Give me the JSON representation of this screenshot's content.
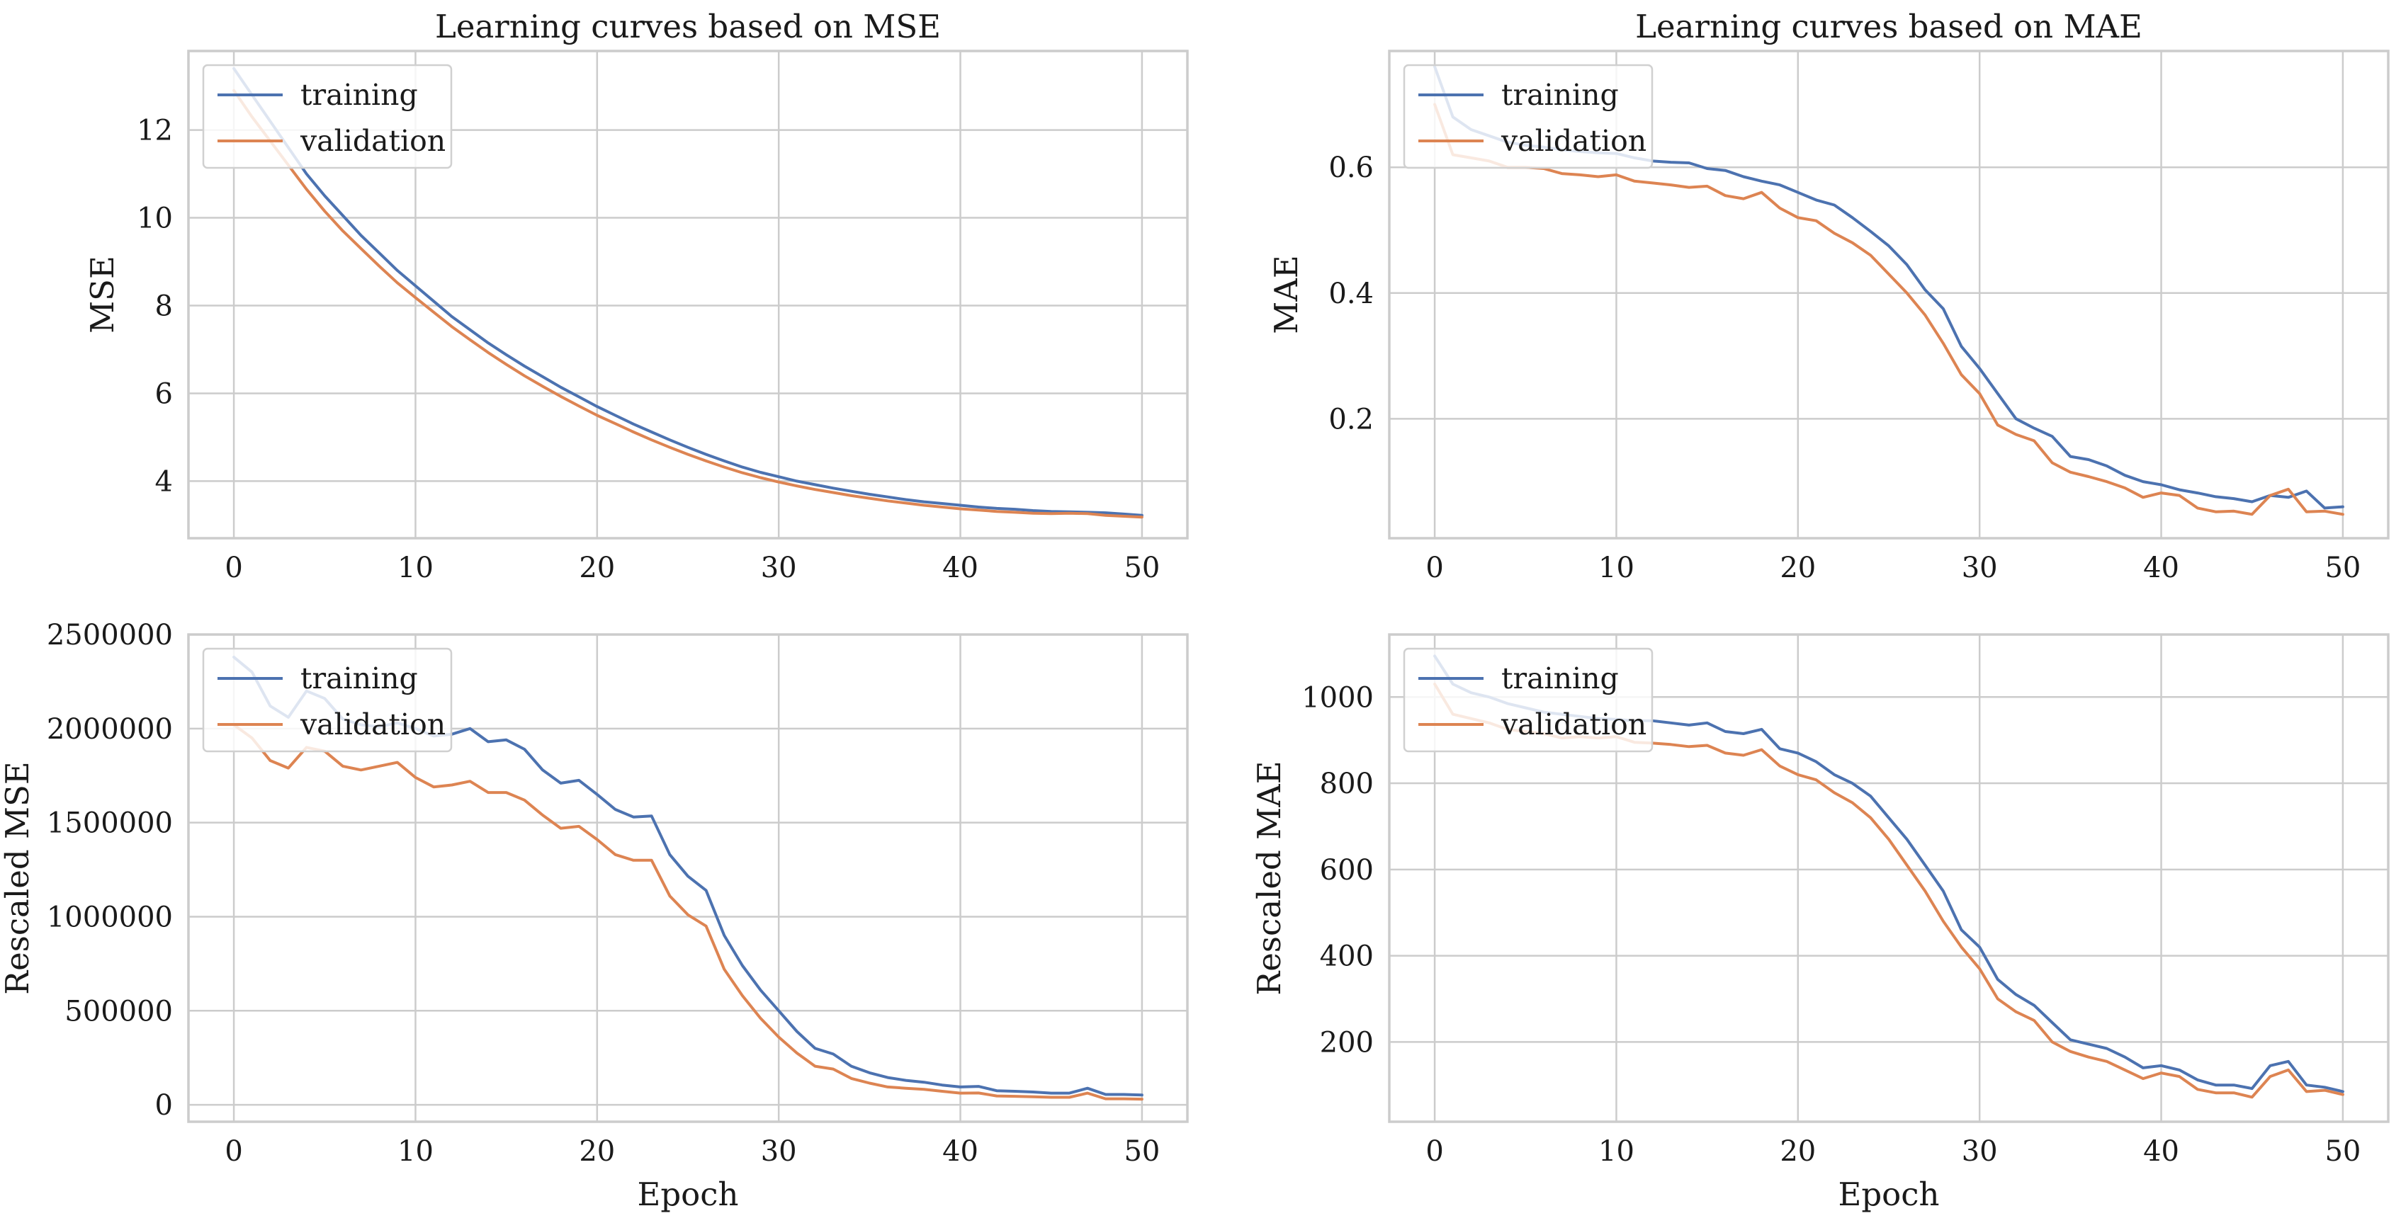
{
  "colors": {
    "training": "#4c72b0",
    "validation": "#dd8452",
    "grid": "#cccccc",
    "frame": "#cccccc"
  },
  "chart_data": [
    {
      "type": "line",
      "title": "Learning curves based on MSE",
      "xlabel": "",
      "ylabel": "MSE",
      "xlim": [
        -2.5,
        52.5
      ],
      "ylim": [
        2.7,
        13.8
      ],
      "xticks": [
        0,
        10,
        20,
        30,
        40,
        50
      ],
      "yticks": [
        4,
        6,
        8,
        10,
        12
      ],
      "ytick_labels": [
        "4",
        "6",
        "8",
        "10",
        "12"
      ],
      "grid": true,
      "legend": "top-left",
      "x": [
        0,
        1,
        2,
        3,
        4,
        5,
        6,
        7,
        8,
        9,
        10,
        11,
        12,
        13,
        14,
        15,
        16,
        17,
        18,
        19,
        20,
        21,
        22,
        23,
        24,
        25,
        26,
        27,
        28,
        29,
        30,
        31,
        32,
        33,
        34,
        35,
        36,
        37,
        38,
        39,
        40,
        41,
        42,
        43,
        44,
        45,
        46,
        47,
        48,
        49,
        50
      ],
      "series": [
        {
          "name": "training",
          "values": [
            13.4,
            12.8,
            12.2,
            11.6,
            11.0,
            10.5,
            10.05,
            9.6,
            9.2,
            8.8,
            8.45,
            8.1,
            7.75,
            7.45,
            7.15,
            6.88,
            6.62,
            6.38,
            6.14,
            5.92,
            5.7,
            5.5,
            5.3,
            5.12,
            4.94,
            4.77,
            4.61,
            4.46,
            4.32,
            4.2,
            4.1,
            4.0,
            3.92,
            3.84,
            3.77,
            3.7,
            3.64,
            3.58,
            3.53,
            3.49,
            3.45,
            3.41,
            3.38,
            3.36,
            3.33,
            3.31,
            3.3,
            3.29,
            3.28,
            3.25,
            3.22
          ]
        },
        {
          "name": "validation",
          "values": [
            12.9,
            12.3,
            11.75,
            11.2,
            10.65,
            10.15,
            9.7,
            9.3,
            8.9,
            8.52,
            8.18,
            7.85,
            7.52,
            7.22,
            6.93,
            6.66,
            6.4,
            6.16,
            5.93,
            5.71,
            5.5,
            5.31,
            5.12,
            4.94,
            4.77,
            4.61,
            4.46,
            4.32,
            4.19,
            4.08,
            3.98,
            3.89,
            3.81,
            3.74,
            3.67,
            3.61,
            3.55,
            3.5,
            3.45,
            3.41,
            3.37,
            3.34,
            3.31,
            3.29,
            3.27,
            3.26,
            3.27,
            3.26,
            3.22,
            3.2,
            3.18
          ]
        }
      ]
    },
    {
      "type": "line",
      "title": "Learning curves based on MAE",
      "xlabel": "",
      "ylabel": "MAE",
      "xlim": [
        -2.5,
        52.5
      ],
      "ylim": [
        0.01,
        0.785
      ],
      "xticks": [
        0,
        10,
        20,
        30,
        40,
        50
      ],
      "yticks": [
        0.2,
        0.4,
        0.6
      ],
      "ytick_labels": [
        "0.2",
        "0.4",
        "0.6"
      ],
      "grid": true,
      "legend": "top-left",
      "x": [
        0,
        1,
        2,
        3,
        4,
        5,
        6,
        7,
        8,
        9,
        10,
        11,
        12,
        13,
        14,
        15,
        16,
        17,
        18,
        19,
        20,
        21,
        22,
        23,
        24,
        25,
        26,
        27,
        28,
        29,
        30,
        31,
        32,
        33,
        34,
        35,
        36,
        37,
        38,
        39,
        40,
        41,
        42,
        43,
        44,
        45,
        46,
        47,
        48,
        49,
        50
      ],
      "series": [
        {
          "name": "training",
          "values": [
            0.76,
            0.68,
            0.66,
            0.65,
            0.64,
            0.635,
            0.632,
            0.628,
            0.625,
            0.623,
            0.622,
            0.615,
            0.61,
            0.608,
            0.607,
            0.598,
            0.595,
            0.585,
            0.578,
            0.572,
            0.56,
            0.548,
            0.54,
            0.52,
            0.498,
            0.475,
            0.445,
            0.405,
            0.375,
            0.315,
            0.28,
            0.24,
            0.2,
            0.185,
            0.172,
            0.14,
            0.135,
            0.125,
            0.11,
            0.1,
            0.095,
            0.087,
            0.082,
            0.076,
            0.073,
            0.068,
            0.078,
            0.075,
            0.085,
            0.058,
            0.06
          ]
        },
        {
          "name": "validation",
          "values": [
            0.7,
            0.62,
            0.615,
            0.61,
            0.6,
            0.6,
            0.598,
            0.59,
            0.588,
            0.585,
            0.588,
            0.578,
            0.575,
            0.572,
            0.568,
            0.57,
            0.555,
            0.55,
            0.56,
            0.535,
            0.52,
            0.515,
            0.495,
            0.48,
            0.46,
            0.43,
            0.4,
            0.365,
            0.32,
            0.27,
            0.24,
            0.19,
            0.175,
            0.165,
            0.13,
            0.115,
            0.108,
            0.1,
            0.09,
            0.075,
            0.082,
            0.078,
            0.058,
            0.052,
            0.053,
            0.048,
            0.078,
            0.088,
            0.052,
            0.053,
            0.048
          ]
        }
      ]
    },
    {
      "type": "line",
      "title": "",
      "xlabel": "Epoch",
      "ylabel": "Rescaled MSE",
      "xlim": [
        -2.5,
        52.5
      ],
      "ylim": [
        -90000,
        2500000
      ],
      "xticks": [
        0,
        10,
        20,
        30,
        40,
        50
      ],
      "yticks": [
        0,
        500000,
        1000000,
        1500000,
        2000000,
        2500000
      ],
      "ytick_labels": [
        "0",
        "500000",
        "1000000",
        "1500000",
        "2000000",
        "2500000"
      ],
      "grid": true,
      "legend": "top-left",
      "x": [
        0,
        1,
        2,
        3,
        4,
        5,
        6,
        7,
        8,
        9,
        10,
        11,
        12,
        13,
        14,
        15,
        16,
        17,
        18,
        19,
        20,
        21,
        22,
        23,
        24,
        25,
        26,
        27,
        28,
        29,
        30,
        31,
        32,
        33,
        34,
        35,
        36,
        37,
        38,
        39,
        40,
        41,
        42,
        43,
        44,
        45,
        46,
        47,
        48,
        49,
        50
      ],
      "series": [
        {
          "name": "training",
          "values": [
            2380000,
            2300000,
            2120000,
            2060000,
            2200000,
            2160000,
            2050000,
            2020000,
            2010000,
            2030000,
            2000000,
            1960000,
            1970000,
            2000000,
            1930000,
            1940000,
            1890000,
            1780000,
            1710000,
            1725000,
            1650000,
            1570000,
            1530000,
            1535000,
            1330000,
            1215000,
            1140000,
            900000,
            740000,
            610000,
            500000,
            390000,
            300000,
            270000,
            205000,
            170000,
            145000,
            130000,
            120000,
            105000,
            95000,
            98000,
            75000,
            72000,
            68000,
            62000,
            62000,
            88000,
            55000,
            55000,
            52000
          ]
        },
        {
          "name": "validation",
          "values": [
            2020000,
            1950000,
            1830000,
            1790000,
            1900000,
            1880000,
            1800000,
            1780000,
            1800000,
            1820000,
            1740000,
            1690000,
            1700000,
            1720000,
            1660000,
            1660000,
            1620000,
            1540000,
            1470000,
            1480000,
            1410000,
            1330000,
            1300000,
            1300000,
            1110000,
            1010000,
            950000,
            720000,
            580000,
            460000,
            360000,
            275000,
            205000,
            190000,
            140000,
            115000,
            95000,
            88000,
            82000,
            72000,
            62000,
            63000,
            47000,
            45000,
            43000,
            40000,
            40000,
            62000,
            32000,
            32000,
            30000
          ]
        }
      ]
    },
    {
      "type": "line",
      "title": "",
      "xlabel": "Epoch",
      "ylabel": "Rescaled MAE",
      "xlim": [
        -2.5,
        52.5
      ],
      "ylim": [
        15,
        1145
      ],
      "xticks": [
        0,
        10,
        20,
        30,
        40,
        50
      ],
      "yticks": [
        200,
        400,
        600,
        800,
        1000
      ],
      "ytick_labels": [
        "200",
        "400",
        "600",
        "800",
        "1000"
      ],
      "grid": true,
      "legend": "top-left",
      "x": [
        0,
        1,
        2,
        3,
        4,
        5,
        6,
        7,
        8,
        9,
        10,
        11,
        12,
        13,
        14,
        15,
        16,
        17,
        18,
        19,
        20,
        21,
        22,
        23,
        24,
        25,
        26,
        27,
        28,
        29,
        30,
        31,
        32,
        33,
        34,
        35,
        36,
        37,
        38,
        39,
        40,
        41,
        42,
        43,
        44,
        45,
        46,
        47,
        48,
        49,
        50
      ],
      "series": [
        {
          "name": "training",
          "values": [
            1095,
            1030,
            1010,
            1000,
            985,
            975,
            965,
            960,
            955,
            950,
            948,
            945,
            945,
            940,
            935,
            940,
            920,
            915,
            925,
            880,
            870,
            850,
            820,
            800,
            770,
            720,
            670,
            610,
            550,
            460,
            420,
            345,
            310,
            285,
            245,
            205,
            195,
            185,
            165,
            140,
            145,
            135,
            112,
            100,
            100,
            92,
            145,
            155,
            100,
            95,
            85
          ]
        },
        {
          "name": "validation",
          "values": [
            1030,
            960,
            950,
            940,
            925,
            920,
            915,
            905,
            908,
            905,
            908,
            895,
            893,
            890,
            885,
            888,
            870,
            865,
            878,
            840,
            820,
            808,
            778,
            755,
            720,
            670,
            610,
            550,
            480,
            420,
            370,
            300,
            270,
            250,
            200,
            178,
            165,
            155,
            135,
            115,
            128,
            120,
            90,
            82,
            82,
            72,
            120,
            135,
            85,
            88,
            78
          ]
        }
      ]
    }
  ]
}
